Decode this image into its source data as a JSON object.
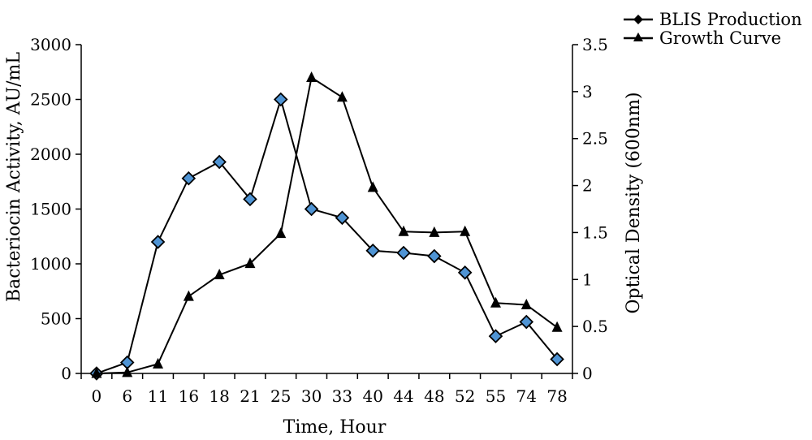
{
  "chart_data": {
    "type": "line",
    "categories": [
      "0",
      "6",
      "11",
      "16",
      "18",
      "21",
      "25",
      "30",
      "33",
      "40",
      "44",
      "48",
      "52",
      "55",
      "74",
      "78"
    ],
    "xlabel": "Time, Hour",
    "ylabel": "Bacteriocin Activity, AU/mL",
    "y2label": "Optical Density (600nm)",
    "ylim": [
      0,
      3000
    ],
    "y2lim": [
      0,
      3.5
    ],
    "yticks": [
      "0",
      "500",
      "1000",
      "1500",
      "2000",
      "2500",
      "3000"
    ],
    "y2ticks": [
      "0",
      "0.5",
      "1",
      "1.5",
      "2",
      "2.5",
      "3",
      "3.5"
    ],
    "legend_position": "top-right",
    "grid": false,
    "series": [
      {
        "name": "BLIS Production",
        "axis": "left",
        "marker": "diamond",
        "values": [
          0,
          100,
          1200,
          1780,
          1930,
          1590,
          2500,
          1500,
          1420,
          1120,
          1100,
          1070,
          920,
          340,
          470,
          130
        ]
      },
      {
        "name": "Growth Curve",
        "axis": "right",
        "marker": "triangle",
        "values": [
          0,
          0.01,
          0.1,
          0.82,
          1.05,
          1.17,
          1.49,
          3.15,
          2.94,
          1.98,
          1.51,
          1.5,
          1.51,
          0.75,
          0.73,
          0.49
        ]
      }
    ],
    "colors": {
      "line": "#000000",
      "diamond_fill": "#4f94d4",
      "diamond_stroke": "#000000",
      "triangle_fill": "#000000"
    }
  }
}
